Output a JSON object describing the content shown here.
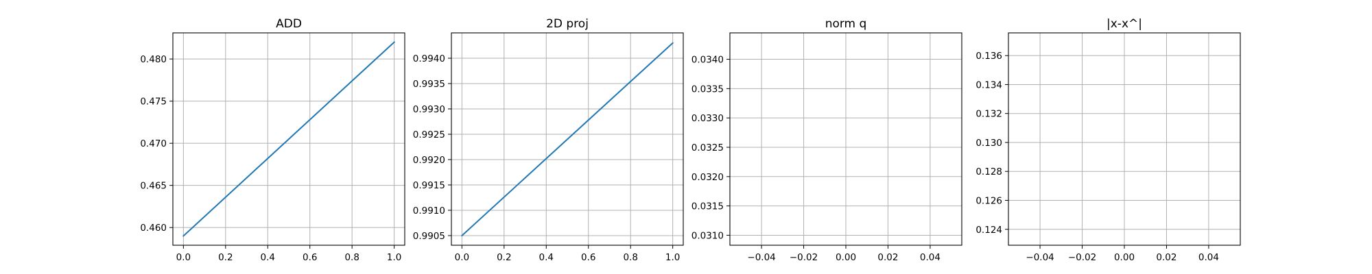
{
  "colors": {
    "series": "#1f77b4",
    "grid": "#b0b0b0"
  },
  "chart_data": [
    {
      "type": "line",
      "title": "ADD",
      "xlim": [
        -0.05,
        1.05
      ],
      "ylim": [
        0.4579,
        0.4831
      ],
      "grid": true,
      "xticks": [
        0.0,
        0.2,
        0.4,
        0.6,
        0.8,
        1.0
      ],
      "xtick_labels": [
        "0.0",
        "0.2",
        "0.4",
        "0.6",
        "0.8",
        "1.0"
      ],
      "yticks": [
        0.46,
        0.465,
        0.47,
        0.475,
        0.48
      ],
      "ytick_labels": [
        "0.460",
        "0.465",
        "0.470",
        "0.475",
        "0.480"
      ],
      "series": [
        {
          "x": [
            0.0,
            1.0
          ],
          "y": [
            0.459,
            0.482
          ]
        }
      ]
    },
    {
      "type": "line",
      "title": "2D proj",
      "xlim": [
        -0.05,
        1.05
      ],
      "ylim": [
        0.99031,
        0.9945
      ],
      "grid": true,
      "xticks": [
        0.0,
        0.2,
        0.4,
        0.6,
        0.8,
        1.0
      ],
      "xtick_labels": [
        "0.0",
        "0.2",
        "0.4",
        "0.6",
        "0.8",
        "1.0"
      ],
      "yticks": [
        0.9905,
        0.991,
        0.9915,
        0.992,
        0.9925,
        0.993,
        0.9935,
        0.994
      ],
      "ytick_labels": [
        "0.9905",
        "0.9910",
        "0.9915",
        "0.9920",
        "0.9925",
        "0.9930",
        "0.9935",
        "0.9940"
      ],
      "series": [
        {
          "x": [
            0.0,
            1.0
          ],
          "y": [
            0.9905,
            0.9943
          ]
        }
      ]
    },
    {
      "type": "line",
      "title": "norm q",
      "xlim": [
        -0.055,
        0.055
      ],
      "ylim": [
        0.03083,
        0.03445
      ],
      "grid": true,
      "xticks": [
        -0.04,
        -0.02,
        0.0,
        0.02,
        0.04
      ],
      "xtick_labels": [
        "−0.04",
        "−0.02",
        "0.00",
        "0.02",
        "0.04"
      ],
      "yticks": [
        0.031,
        0.0315,
        0.032,
        0.0325,
        0.033,
        0.0335,
        0.034
      ],
      "ytick_labels": [
        "0.0310",
        "0.0315",
        "0.0320",
        "0.0325",
        "0.0330",
        "0.0335",
        "0.0340"
      ],
      "series": []
    },
    {
      "type": "line",
      "title": "|x-x^|",
      "xlim": [
        -0.055,
        0.055
      ],
      "ylim": [
        0.1229,
        0.13757
      ],
      "grid": true,
      "xticks": [
        -0.04,
        -0.02,
        0.0,
        0.02,
        0.04
      ],
      "xtick_labels": [
        "−0.04",
        "−0.02",
        "0.00",
        "0.02",
        "0.04"
      ],
      "yticks": [
        0.124,
        0.126,
        0.128,
        0.13,
        0.132,
        0.134,
        0.136
      ],
      "ytick_labels": [
        "0.124",
        "0.126",
        "0.128",
        "0.130",
        "0.132",
        "0.134",
        "0.136"
      ],
      "series": []
    }
  ]
}
